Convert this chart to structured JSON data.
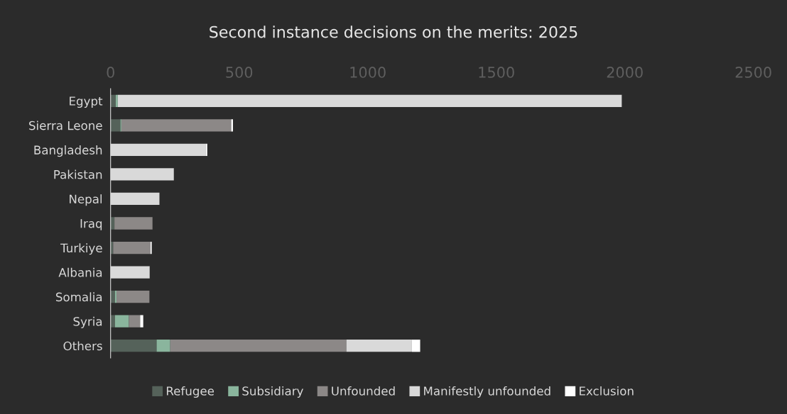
{
  "chart_data": {
    "type": "bar",
    "orientation": "horizontal",
    "stacked": true,
    "title": "Second instance decisions on the merits: 2025",
    "categories": [
      "Egypt",
      "Sierra Leone",
      "Bangladesh",
      "Pakistan",
      "Nepal",
      "Iraq",
      "Turkiye",
      "Albania",
      "Somalia",
      "Syria",
      "Others"
    ],
    "series": [
      {
        "name": "Refugee",
        "color": "#55625a",
        "values": [
          20,
          38,
          0,
          0,
          0,
          15,
          10,
          0,
          17,
          17,
          179
        ]
      },
      {
        "name": "Subsidiary",
        "color": "#8ab59d",
        "values": [
          8,
          4,
          0,
          0,
          0,
          0,
          0,
          0,
          6,
          54,
          53
        ]
      },
      {
        "name": "Unfounded",
        "color": "#8c8887",
        "values": [
          0,
          427,
          0,
          0,
          0,
          148,
          145,
          0,
          128,
          44,
          685
        ]
      },
      {
        "name": "Manifestly unfounded",
        "color": "#d9d9d9",
        "values": [
          1960,
          0,
          369,
          246,
          190,
          0,
          0,
          152,
          0,
          0,
          255
        ]
      },
      {
        "name": "Exclusion",
        "color": "#ffffff",
        "values": [
          0,
          7,
          7,
          0,
          0,
          0,
          5,
          0,
          0,
          12,
          32
        ]
      }
    ],
    "xlim": [
      0,
      2500
    ],
    "xticks": [
      0,
      500,
      1000,
      1500,
      2000,
      2500
    ],
    "grid": false,
    "legend": "bottom"
  }
}
